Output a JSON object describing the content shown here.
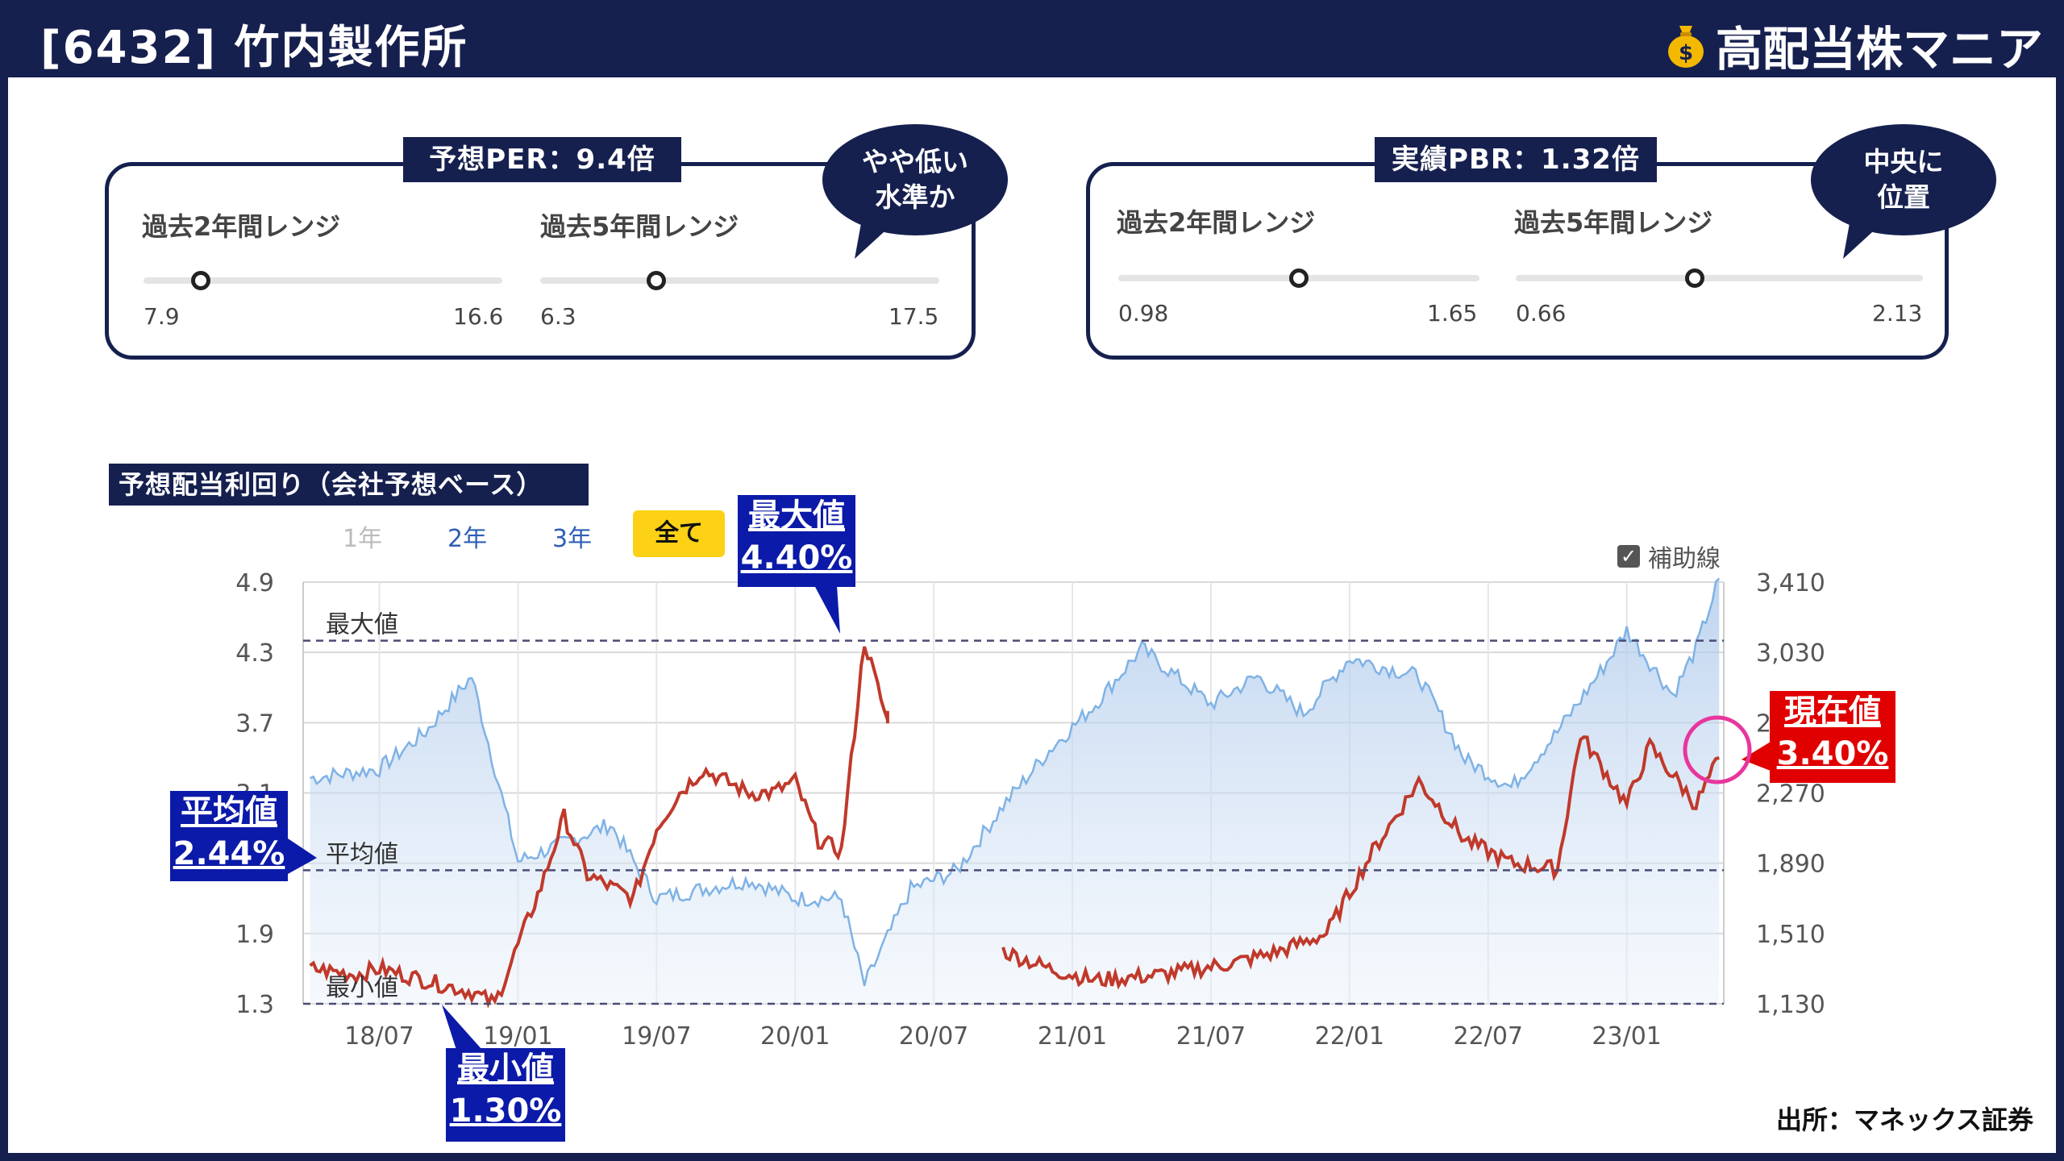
{
  "header": {
    "company": "[6432] 竹内製作所",
    "brand": "高配当株マニア"
  },
  "per_card": {
    "title": "予想PER：9.4倍",
    "bubble_line1": "やや低い",
    "bubble_line2": "水準か",
    "range2": {
      "label": "過去2年間レンジ",
      "min": "7.9",
      "max": "16.6",
      "position": 0.16
    },
    "range5": {
      "label": "過去5年間レンジ",
      "min": "6.3",
      "max": "17.5",
      "position": 0.29
    }
  },
  "pbr_card": {
    "title": "実績PBR：1.32倍",
    "bubble_line1": "中央に",
    "bubble_line2": "位置",
    "range2": {
      "label": "過去2年間レンジ",
      "min": "0.98",
      "max": "1.65",
      "position": 0.5
    },
    "range5": {
      "label": "過去5年間レンジ",
      "min": "0.66",
      "max": "2.13",
      "position": 0.44
    }
  },
  "chart_section": {
    "title": "予想配当利回り（会社予想ベース）",
    "periods": [
      "1年",
      "2年",
      "3年"
    ],
    "period_selected": "全て",
    "aux_label": "補助線",
    "ref_max": "最大値",
    "ref_avg": "平均値",
    "ref_min": "最小値"
  },
  "callouts": {
    "max": {
      "label": "最大値",
      "value": "4.40%"
    },
    "min": {
      "label": "最小値",
      "value": "1.30%"
    },
    "avg": {
      "label": "平均値",
      "value": "2.44%"
    },
    "current": {
      "label": "現在値",
      "value": "3.40%"
    }
  },
  "source": "出所：マネックス証券",
  "colors": {
    "navy": "#16204f",
    "yield_line": "#c0392b",
    "price_line": "#7fb2e5",
    "current_red": "#e00000",
    "highlight_circle": "#e8369d",
    "selected_period": "#fcd116"
  },
  "chart_data": {
    "type": "line",
    "x_ticks": [
      "18/07",
      "19/01",
      "19/07",
      "20/01",
      "20/07",
      "21/01",
      "21/07",
      "22/01",
      "22/07",
      "23/01"
    ],
    "y_left_ticks": [
      "1.3",
      "1.9",
      "2.5",
      "3.1",
      "3.7",
      "4.3",
      "4.9"
    ],
    "y_left_range": [
      1.3,
      4.9
    ],
    "y_right_ticks": [
      "1,130",
      "1,510",
      "1,890",
      "2,270",
      "2,650",
      "3,030",
      "3,410"
    ],
    "y_right_range": [
      1130,
      3410
    ],
    "reference_lines": {
      "max": 4.4,
      "avg": 2.44,
      "min": 1.3
    },
    "series": [
      {
        "axis": "left",
        "points": [
          [
            "18/04",
            1.6
          ],
          [
            "18/06",
            1.55
          ],
          [
            "18/07",
            1.6
          ],
          [
            "18/09",
            1.5
          ],
          [
            "18/11",
            1.4
          ],
          [
            "18/12",
            1.3
          ],
          [
            "19/01",
            1.8
          ],
          [
            "19/02",
            2.3
          ],
          [
            "19/03",
            2.9
          ],
          [
            "19/04",
            2.4
          ],
          [
            "19/06",
            2.2
          ],
          [
            "19/07",
            2.8
          ],
          [
            "19/08",
            3.1
          ],
          [
            "19/09",
            3.3
          ],
          [
            "19/11",
            3.1
          ],
          [
            "19/12",
            3.1
          ],
          [
            "20/01",
            3.2
          ],
          [
            "20/02",
            2.7
          ],
          [
            "20/03",
            2.6
          ],
          [
            "20/04",
            4.4
          ],
          [
            "20/05",
            3.7
          ],
          [
            "20/05",
            3.8
          ]
        ]
      },
      {
        "axis": "left",
        "points": [
          [
            "20/10",
            1.75
          ],
          [
            "20/12",
            1.6
          ],
          [
            "21/02",
            1.5
          ],
          [
            "21/05",
            1.55
          ],
          [
            "21/08",
            1.65
          ],
          [
            "21/10",
            1.75
          ],
          [
            "21/12",
            1.9
          ],
          [
            "22/02",
            2.6
          ],
          [
            "22/04",
            3.2
          ],
          [
            "22/06",
            2.7
          ],
          [
            "22/08",
            2.5
          ],
          [
            "22/10",
            2.45
          ],
          [
            "22/11",
            3.6
          ],
          [
            "23/01",
            3.0
          ],
          [
            "23/02",
            3.5
          ],
          [
            "23/04",
            3.0
          ],
          [
            "23/05",
            3.4
          ]
        ]
      },
      {
        "axis": "right",
        "points": [
          [
            "18/04",
            2350
          ],
          [
            "18/07",
            2400
          ],
          [
            "18/09",
            2600
          ],
          [
            "18/11",
            2900
          ],
          [
            "19/01",
            1900
          ],
          [
            "19/03",
            2000
          ],
          [
            "19/05",
            2100
          ],
          [
            "19/07",
            1700
          ],
          [
            "19/09",
            1750
          ],
          [
            "19/11",
            1800
          ],
          [
            "20/01",
            1700
          ],
          [
            "20/03",
            1700
          ],
          [
            "20/04",
            1230
          ],
          [
            "20/06",
            1750
          ],
          [
            "20/08",
            1850
          ],
          [
            "20/10",
            2200
          ],
          [
            "20/12",
            2500
          ],
          [
            "21/02",
            2750
          ],
          [
            "21/04",
            3050
          ],
          [
            "21/07",
            2750
          ],
          [
            "21/09",
            2900
          ],
          [
            "21/11",
            2700
          ],
          [
            "22/01",
            3000
          ],
          [
            "22/04",
            2900
          ],
          [
            "22/06",
            2450
          ],
          [
            "22/08",
            2300
          ],
          [
            "22/10",
            2600
          ],
          [
            "22/12",
            2950
          ],
          [
            "23/01",
            3150
          ],
          [
            "23/03",
            2800
          ],
          [
            "23/04",
            3050
          ],
          [
            "23/05",
            3430
          ]
        ]
      }
    ]
  }
}
